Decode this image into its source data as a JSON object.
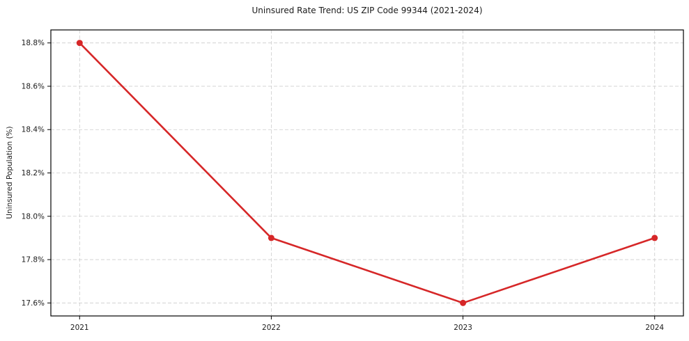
{
  "figure": {
    "background_color": "#ffffff",
    "text_color": "#1a1a1a"
  },
  "chart_data": {
    "type": "line",
    "title": "Uninsured Rate Trend: US ZIP Code 99344 (2021-2024)",
    "xlabel": "",
    "ylabel": "Uninsured Population (%)",
    "x": [
      2021,
      2022,
      2023,
      2024
    ],
    "values": [
      18.8,
      17.9,
      17.6,
      17.9
    ],
    "x_tick_labels": [
      "2021",
      "2022",
      "2023",
      "2024"
    ],
    "y_ticks": [
      17.6,
      17.8,
      18.0,
      18.2,
      18.4,
      18.6,
      18.8
    ],
    "y_tick_labels": [
      "17.6%",
      "17.8%",
      "18.0%",
      "18.2%",
      "18.4%",
      "18.6%",
      "18.8%"
    ],
    "xlim": [
      2020.85,
      2024.15
    ],
    "ylim": [
      17.54,
      18.86
    ],
    "grid": true,
    "grid_style": "dashed",
    "legend_position": "none",
    "line_color": "#d62728",
    "marker": "circle",
    "grid_color": "#cccccc",
    "spine_color": "#000000"
  }
}
